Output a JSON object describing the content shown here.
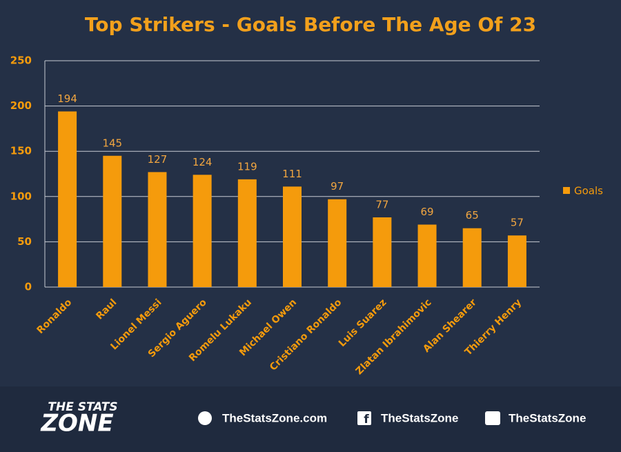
{
  "chart_data": {
    "type": "bar",
    "title": "Top Strikers - Goals Before The Age Of 23",
    "categories": [
      "Ronaldo",
      "Raul",
      "Lionel Messi",
      "Sergio Aguero",
      "Romelu Lukaku",
      "Michael Owen",
      "Cristiano Ronaldo",
      "Luis Suarez",
      "Zlatan Ibrahimovic",
      "Alan Shearer",
      "Thierry Henry"
    ],
    "series": [
      {
        "name": "Goals",
        "color": "#f59b0c",
        "values": [
          194,
          145,
          127,
          124,
          119,
          111,
          97,
          77,
          69,
          65,
          57
        ]
      }
    ],
    "ylim": [
      0,
      250
    ],
    "yticks": [
      0,
      50,
      100,
      150,
      200,
      250
    ],
    "grid": true,
    "legend": "right"
  },
  "footer": {
    "logo_top": "THE STATS",
    "logo_bottom": "ZONE",
    "website": "TheStatsZone.com",
    "facebook": "TheStatsZone",
    "twitter": "TheStatsZone"
  }
}
